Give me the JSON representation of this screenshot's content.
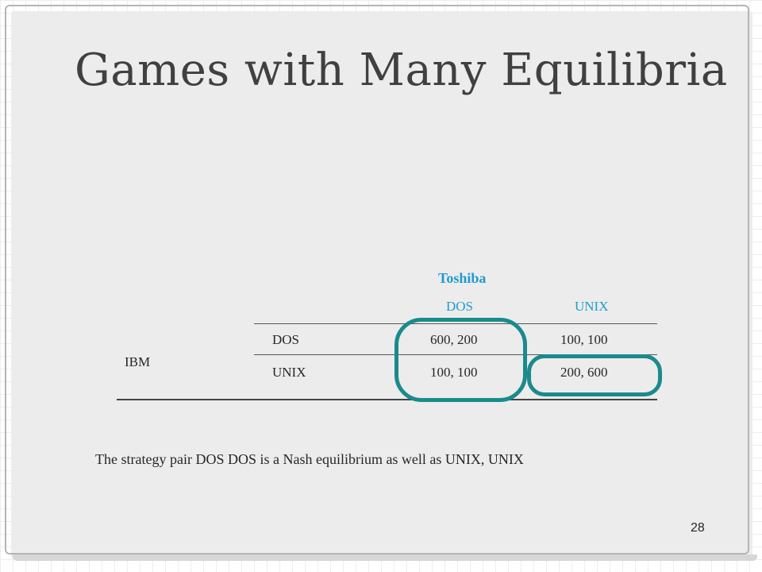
{
  "slide": {
    "title": "Games with Many Equilibria",
    "page_number": "28",
    "caption": "The strategy pair DOS DOS is a Nash equilibrium as well as UNIX, UNIX"
  },
  "payoff_table": {
    "column_player": "Toshiba",
    "row_player": "IBM",
    "column_strategies": [
      "DOS",
      "UNIX"
    ],
    "rows": [
      {
        "strategy": "DOS",
        "cells": [
          "600, 200",
          "100, 100"
        ]
      },
      {
        "strategy": "UNIX",
        "cells": [
          "100, 100",
          "200, 600"
        ]
      }
    ],
    "highlighted_cells": [
      "DOS/DOS",
      "UNIX/UNIX"
    ]
  },
  "colors": {
    "title": "#404040",
    "header_accent": "#1f9bcf",
    "highlight_ring": "#1b8a8c",
    "body_text": "#262626"
  }
}
